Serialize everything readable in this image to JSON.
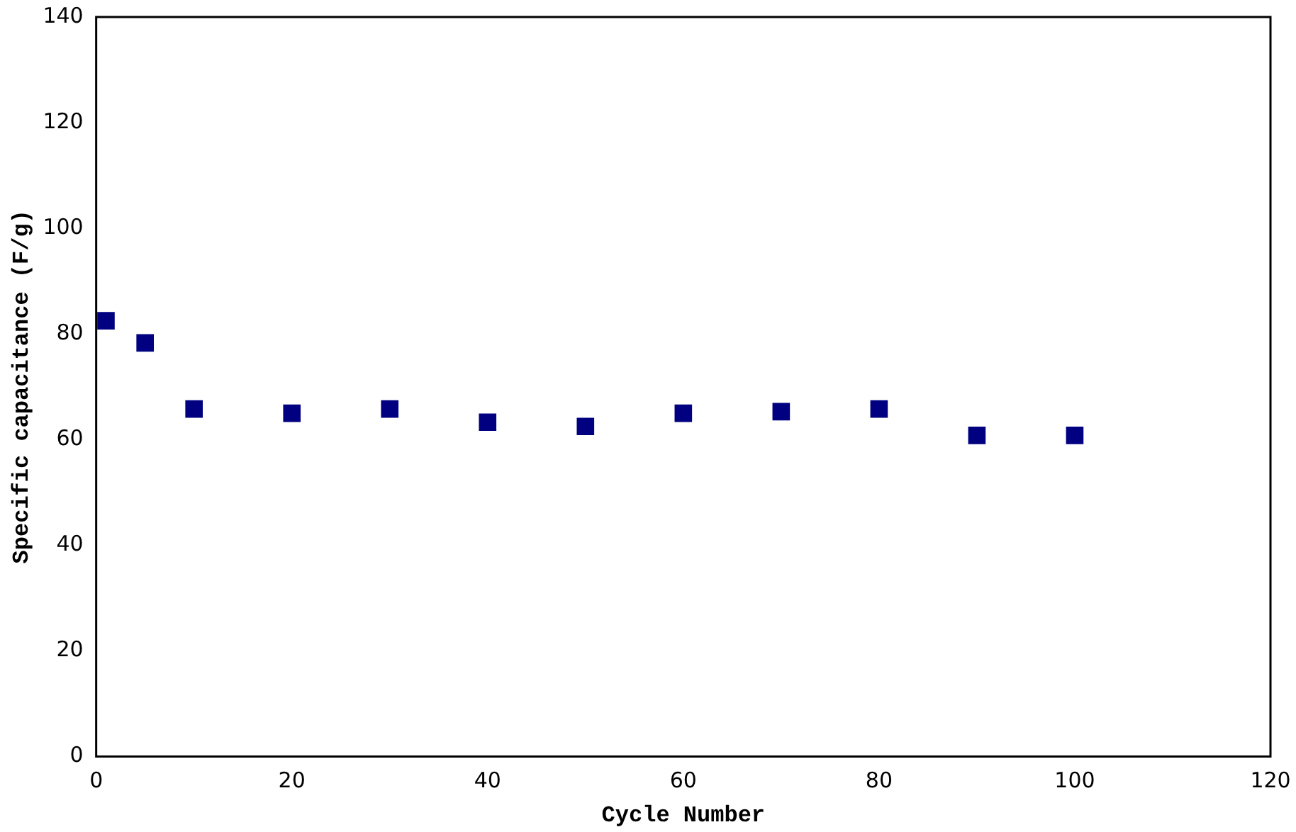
{
  "chart_data": {
    "type": "scatter",
    "xlabel": "Cycle Number",
    "ylabel": "Specific capacitance (F/g)",
    "x": [
      1,
      5,
      10,
      20,
      30,
      40,
      50,
      60,
      70,
      80,
      90,
      100
    ],
    "series": [
      {
        "color": "#000080",
        "values": [
          82.5,
          78.3,
          65.8,
          65,
          65.8,
          63.3,
          62.5,
          65,
          65.3,
          65.8,
          60.8,
          60.8
        ]
      }
    ],
    "xlim": [
      0,
      120
    ],
    "xticks": [
      0,
      20,
      40,
      60,
      80,
      100,
      120
    ],
    "ylim": [
      0,
      140
    ],
    "yticks": [
      0,
      20,
      40,
      60,
      80,
      100,
      120,
      140
    ],
    "grid": false,
    "legend": false,
    "marker": "square"
  }
}
